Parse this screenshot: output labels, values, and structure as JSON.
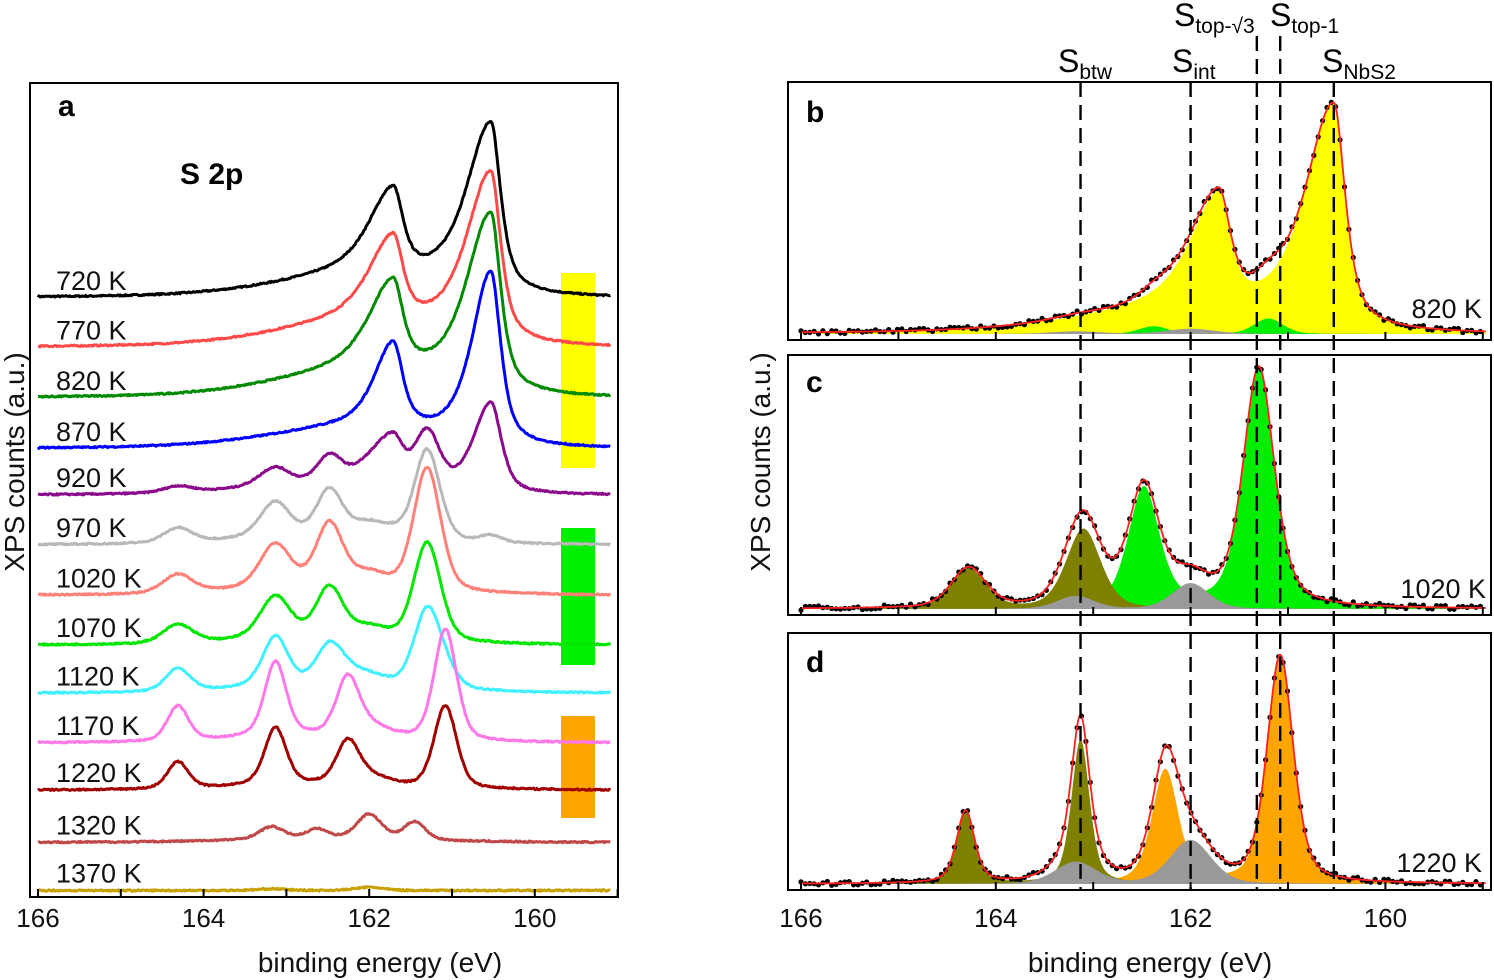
{
  "chart_data": [
    {
      "panel": "a",
      "type": "line",
      "panel_label": "a",
      "annotation": "S 2p",
      "xlabel": "binding energy (eV)",
      "ylabel": "XPS counts (a.u.)",
      "xlim": [
        166,
        159.1
      ],
      "xticks": [
        "166",
        "164",
        "162",
        "160"
      ],
      "phase_bars": [
        {
          "color": "#ffff00"
        },
        {
          "color": "#00ee00"
        },
        {
          "color": "#ffa500"
        }
      ],
      "series": [
        {
          "name": "720 K",
          "color": "#000000",
          "offset": 73.5,
          "peaks": [
            {
              "be": 160.53,
              "amp": 20.5,
              "w": 0.28,
              "wh": 0.7,
              "eta": 0.7
            },
            {
              "be": 162.0,
              "amp": 2.5,
              "w": 2.5,
              "singlet": true
            }
          ]
        },
        {
          "name": "770 K",
          "color": "#ff4a4a",
          "offset": 67.4,
          "peaks": [
            {
              "be": 160.53,
              "amp": 20.5,
              "w": 0.28,
              "wh": 0.7,
              "eta": 0.7
            },
            {
              "be": 162.0,
              "amp": 2.8,
              "w": 2.5,
              "singlet": true
            }
          ]
        },
        {
          "name": "820 K",
          "color": "#008a00",
          "offset": 61.2,
          "peaks": [
            {
              "be": 160.53,
              "amp": 21.5,
              "w": 0.28,
              "wh": 0.7,
              "eta": 0.7
            },
            {
              "be": 162.0,
              "amp": 3.0,
              "w": 2.5,
              "singlet": true
            }
          ]
        },
        {
          "name": "870 K",
          "color": "#0000ff",
          "offset": 55.0,
          "peaks": [
            {
              "be": 160.53,
              "amp": 21.0,
              "w": 0.28,
              "wh": 0.55,
              "eta": 0.7
            },
            {
              "be": 162.2,
              "amp": 2.2,
              "w": 2.5,
              "singlet": true
            }
          ]
        },
        {
          "name": "920 K",
          "color": "#8b0a8b",
          "offset": 49.3,
          "peaks": [
            {
              "be": 160.53,
              "amp": 11,
              "w": 0.3,
              "wh": 0.5,
              "eta": 0.6
            },
            {
              "be": 161.3,
              "amp": 6.5,
              "w": 0.35
            },
            {
              "be": 163.13,
              "amp": 1.5,
              "w": 0.4
            },
            {
              "be": 162.0,
              "amp": 1.5,
              "w": 0.5
            },
            {
              "be": 162.5,
              "amp": 1.2,
              "w": 2.5,
              "singlet": true
            }
          ]
        },
        {
          "name": "970 K",
          "color": "#b8b8b8",
          "offset": 43.2,
          "peaks": [
            {
              "be": 161.3,
              "amp": 11,
              "w": 0.36
            },
            {
              "be": 163.13,
              "amp": 3.5,
              "w": 0.4
            },
            {
              "be": 162.0,
              "amp": 1.5,
              "w": 0.5
            },
            {
              "be": 160.53,
              "amp": 0.8,
              "w": 0.3
            },
            {
              "be": 162.5,
              "amp": 1.2,
              "w": 2.5,
              "singlet": true
            }
          ]
        },
        {
          "name": "1020 K",
          "color": "#ff8078",
          "offset": 37.0,
          "peaks": [
            {
              "be": 161.3,
              "amp": 15,
              "w": 0.38
            },
            {
              "be": 163.13,
              "amp": 4.5,
              "w": 0.42
            },
            {
              "be": 162.0,
              "amp": 1.5,
              "w": 0.5
            },
            {
              "be": 162.5,
              "amp": 1.2,
              "w": 2.5,
              "singlet": true
            }
          ]
        },
        {
          "name": "1070 K",
          "color": "#00e600",
          "offset": 30.9,
          "peaks": [
            {
              "be": 161.3,
              "amp": 12,
              "w": 0.38
            },
            {
              "be": 163.13,
              "amp": 4.5,
              "w": 0.42
            },
            {
              "be": 162.0,
              "amp": 1.2,
              "w": 0.5
            },
            {
              "be": 162.5,
              "amp": 1.0,
              "w": 2.5,
              "singlet": true
            }
          ]
        },
        {
          "name": "1120 K",
          "color": "#40f0ff",
          "offset": 25.0,
          "peaks": [
            {
              "be": 161.3,
              "amp": 9.5,
              "w": 0.38
            },
            {
              "be": 161.08,
              "amp": 1.5,
              "w": 0.35
            },
            {
              "be": 163.13,
              "amp": 5.5,
              "w": 0.35
            },
            {
              "be": 162.0,
              "amp": 1.2,
              "w": 0.5
            },
            {
              "be": 162.5,
              "amp": 1.0,
              "w": 2.5,
              "singlet": true
            }
          ]
        },
        {
          "name": "1170 K",
          "color": "#ff78e8",
          "offset": 18.9,
          "peaks": [
            {
              "be": 161.08,
              "amp": 13.5,
              "w": 0.32
            },
            {
              "be": 163.13,
              "amp": 8.5,
              "w": 0.3
            },
            {
              "be": 162.0,
              "amp": 1.2,
              "w": 0.5
            },
            {
              "be": 162.5,
              "amp": 1.0,
              "w": 2.5,
              "singlet": true
            }
          ]
        },
        {
          "name": "1220 K",
          "color": "#a00000",
          "offset": 13.1,
          "peaks": [
            {
              "be": 161.08,
              "amp": 10,
              "w": 0.32
            },
            {
              "be": 163.13,
              "amp": 6.5,
              "w": 0.3
            },
            {
              "be": 162.0,
              "amp": 1.0,
              "w": 0.5
            },
            {
              "be": 162.5,
              "amp": 0.8,
              "w": 2.5,
              "singlet": true
            }
          ]
        },
        {
          "name": "1320 K",
          "color": "#c04848",
          "offset": 6.7,
          "peaks": [
            {
              "be": 161.45,
              "amp": 2.2,
              "w": 0.3
            },
            {
              "be": 162.0,
              "amp": 3.0,
              "w": 0.35
            },
            {
              "be": 162.5,
              "amp": 0.5,
              "w": 2.5,
              "singlet": true
            }
          ]
        },
        {
          "name": "1370 K",
          "color": "#c8a000",
          "offset": 0.8,
          "peaks": [
            {
              "be": 162.0,
              "amp": 0.4,
              "w": 0.4
            }
          ]
        }
      ]
    },
    {
      "panel": "b",
      "type": "area",
      "panel_label": "b",
      "temperature": "820 K",
      "xlim": [
        166,
        158.97
      ],
      "data_color": "#000000",
      "fit_color": "#ff2020",
      "components": [
        {
          "color": "#ffff00",
          "peaks": [
            {
              "be": 160.53,
              "amp": 86,
              "w": 0.28,
              "wh": 0.7,
              "eta": 0.7
            },
            {
              "be": 162.0,
              "amp": 8,
              "w": 2.5,
              "singlet": true
            }
          ]
        },
        {
          "color": "#00ee00",
          "peaks": [
            {
              "be": 161.2,
              "amp": 6,
              "w": 0.35
            }
          ]
        },
        {
          "color": "#999999",
          "peaks": [
            {
              "be": 162.0,
              "amp": 2,
              "w": 0.6
            }
          ]
        }
      ]
    },
    {
      "panel": "c",
      "type": "area",
      "panel_label": "c",
      "temperature": "1020 K",
      "xlim": [
        166,
        158.97
      ],
      "data_color": "#000000",
      "fit_color": "#ff2020",
      "components": [
        {
          "color": "#00ee00",
          "peaks": [
            {
              "be": 161.3,
              "amp": 93,
              "w": 0.38,
              "eta": 0.5
            }
          ]
        },
        {
          "color": "#808000",
          "peaks": [
            {
              "be": 163.1,
              "amp": 31,
              "w": 0.42,
              "eta": 0.4
            }
          ]
        },
        {
          "color": "#999999",
          "peaks": [
            {
              "be": 162.0,
              "amp": 10,
              "w": 0.45
            }
          ]
        }
      ]
    },
    {
      "panel": "d",
      "type": "area",
      "panel_label": "d",
      "temperature": "1220 K",
      "xlabel": "binding energy (eV)",
      "ylabel": "XPS counts (a.u.)",
      "xlim": [
        166,
        158.97
      ],
      "xticks": [
        "166",
        "164",
        "162",
        "160"
      ],
      "data_color": "#000000",
      "fit_color": "#ff2020",
      "components": [
        {
          "color": "#ffa500",
          "peaks": [
            {
              "be": 161.08,
              "amp": 88,
              "w": 0.32,
              "eta": 0.45
            }
          ]
        },
        {
          "color": "#808000",
          "peaks": [
            {
              "be": 163.13,
              "amp": 56,
              "w": 0.22,
              "eta": 0.5
            }
          ]
        },
        {
          "color": "#999999",
          "peaks": [
            {
              "be": 162.0,
              "amp": 17,
              "w": 0.5
            }
          ]
        }
      ]
    }
  ],
  "reference_lines": [
    {
      "main": "S",
      "sub": "btw",
      "be": 163.13
    },
    {
      "main": "S",
      "sub": "int",
      "be": 162.0
    },
    {
      "main": "S",
      "sub": "top-√3",
      "be": 161.32
    },
    {
      "main": "S",
      "sub": "top-1",
      "be": 161.08
    },
    {
      "main": "S",
      "sub": "NbS2",
      "be": 160.53
    }
  ]
}
